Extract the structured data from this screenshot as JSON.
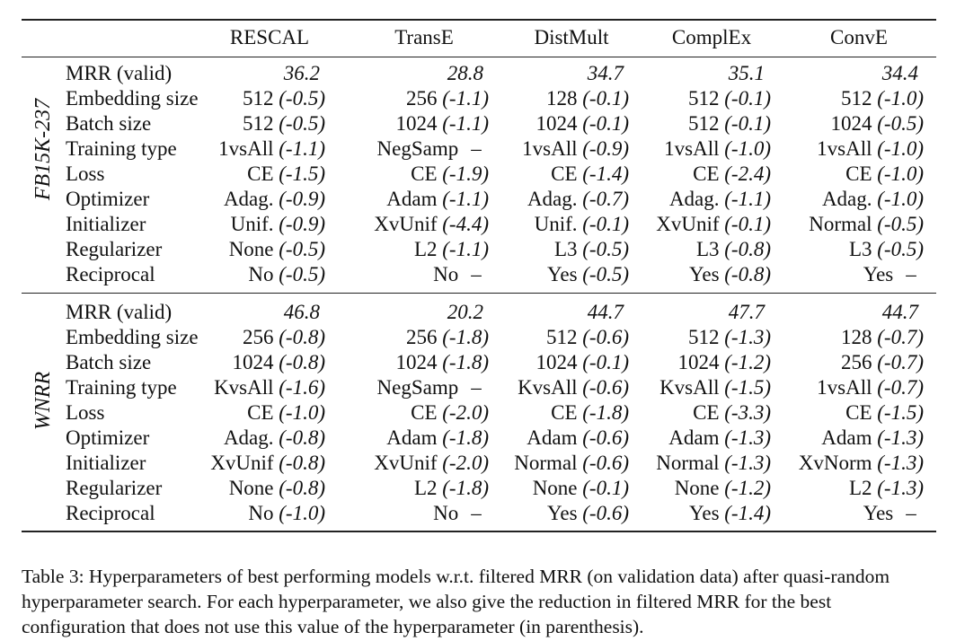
{
  "table": {
    "columns": [
      "RESCAL",
      "TransE",
      "DistMult",
      "ComplEx",
      "ConvE"
    ],
    "sections": [
      {
        "dataset": "FB15K-237",
        "mrr_label": "MRR (valid)",
        "mrr": [
          "36.2",
          "28.8",
          "34.7",
          "35.1",
          "34.4"
        ],
        "rows": [
          {
            "label": "Embedding size",
            "cells": [
              [
                "512",
                "(-0.5)"
              ],
              [
                "256",
                "(-1.1)"
              ],
              [
                "128",
                "(-0.1)"
              ],
              [
                "512",
                "(-0.1)"
              ],
              [
                "512",
                "(-1.0)"
              ]
            ]
          },
          {
            "label": "Batch size",
            "cells": [
              [
                "512",
                "(-0.5)"
              ],
              [
                "1024",
                "(-1.1)"
              ],
              [
                "1024",
                "(-0.1)"
              ],
              [
                "512",
                "(-0.1)"
              ],
              [
                "1024",
                "(-0.5)"
              ]
            ]
          },
          {
            "label": "Training type",
            "cells": [
              [
                "1vsAll",
                "(-1.1)"
              ],
              [
                "NegSamp",
                "–"
              ],
              [
                "1vsAll",
                "(-0.9)"
              ],
              [
                "1vsAll",
                "(-1.0)"
              ],
              [
                "1vsAll",
                "(-1.0)"
              ]
            ]
          },
          {
            "label": "Loss",
            "cells": [
              [
                "CE",
                "(-1.5)"
              ],
              [
                "CE",
                "(-1.9)"
              ],
              [
                "CE",
                "(-1.4)"
              ],
              [
                "CE",
                "(-2.4)"
              ],
              [
                "CE",
                "(-1.0)"
              ]
            ]
          },
          {
            "label": "Optimizer",
            "cells": [
              [
                "Adag.",
                "(-0.9)"
              ],
              [
                "Adam",
                "(-1.1)"
              ],
              [
                "Adag.",
                "(-0.7)"
              ],
              [
                "Adag.",
                "(-1.1)"
              ],
              [
                "Adag.",
                "(-1.0)"
              ]
            ]
          },
          {
            "label": "Initializer",
            "cells": [
              [
                "Unif.",
                "(-0.9)"
              ],
              [
                "XvUnif",
                "(-4.4)"
              ],
              [
                "Unif.",
                "(-0.1)"
              ],
              [
                "XvUnif",
                "(-0.1)"
              ],
              [
                "Normal",
                "(-0.5)"
              ]
            ]
          },
          {
            "label": "Regularizer",
            "cells": [
              [
                "None",
                "(-0.5)"
              ],
              [
                "L2",
                "(-1.1)"
              ],
              [
                "L3",
                "(-0.5)"
              ],
              [
                "L3",
                "(-0.8)"
              ],
              [
                "L3",
                "(-0.5)"
              ]
            ]
          },
          {
            "label": "Reciprocal",
            "cells": [
              [
                "No",
                "(-0.5)"
              ],
              [
                "No",
                "–"
              ],
              [
                "Yes",
                "(-0.5)"
              ],
              [
                "Yes",
                "(-0.8)"
              ],
              [
                "Yes",
                "–"
              ]
            ]
          }
        ]
      },
      {
        "dataset": "WNRR",
        "mrr_label": "MRR (valid)",
        "mrr": [
          "46.8",
          "20.2",
          "44.7",
          "47.7",
          "44.7"
        ],
        "rows": [
          {
            "label": "Embedding size",
            "cells": [
              [
                "256",
                "(-0.8)"
              ],
              [
                "256",
                "(-1.8)"
              ],
              [
                "512",
                "(-0.6)"
              ],
              [
                "512",
                "(-1.3)"
              ],
              [
                "128",
                "(-0.7)"
              ]
            ]
          },
          {
            "label": "Batch size",
            "cells": [
              [
                "1024",
                "(-0.8)"
              ],
              [
                "1024",
                "(-1.8)"
              ],
              [
                "1024",
                "(-0.1)"
              ],
              [
                "1024",
                "(-1.2)"
              ],
              [
                "256",
                "(-0.7)"
              ]
            ]
          },
          {
            "label": "Training type",
            "cells": [
              [
                "KvsAll",
                "(-1.6)"
              ],
              [
                "NegSamp",
                "–"
              ],
              [
                "KvsAll",
                "(-0.6)"
              ],
              [
                "KvsAll",
                "(-1.5)"
              ],
              [
                "1vsAll",
                "(-0.7)"
              ]
            ]
          },
          {
            "label": "Loss",
            "cells": [
              [
                "CE",
                "(-1.0)"
              ],
              [
                "CE",
                "(-2.0)"
              ],
              [
                "CE",
                "(-1.8)"
              ],
              [
                "CE",
                "(-3.3)"
              ],
              [
                "CE",
                "(-1.5)"
              ]
            ]
          },
          {
            "label": "Optimizer",
            "cells": [
              [
                "Adag.",
                "(-0.8)"
              ],
              [
                "Adam",
                "(-1.8)"
              ],
              [
                "Adam",
                "(-0.6)"
              ],
              [
                "Adam",
                "(-1.3)"
              ],
              [
                "Adam",
                "(-1.3)"
              ]
            ]
          },
          {
            "label": "Initializer",
            "cells": [
              [
                "XvUnif",
                "(-0.8)"
              ],
              [
                "XvUnif",
                "(-2.0)"
              ],
              [
                "Normal",
                "(-0.6)"
              ],
              [
                "Normal",
                "(-1.3)"
              ],
              [
                "XvNorm",
                "(-1.3)"
              ]
            ]
          },
          {
            "label": "Regularizer",
            "cells": [
              [
                "None",
                "(-0.8)"
              ],
              [
                "L2",
                "(-1.8)"
              ],
              [
                "None",
                "(-0.1)"
              ],
              [
                "None",
                "(-1.2)"
              ],
              [
                "L2",
                "(-1.3)"
              ]
            ]
          },
          {
            "label": "Reciprocal",
            "cells": [
              [
                "No",
                "(-1.0)"
              ],
              [
                "No",
                "–"
              ],
              [
                "Yes",
                "(-0.6)"
              ],
              [
                "Yes",
                "(-1.4)"
              ],
              [
                "Yes",
                "–"
              ]
            ]
          }
        ]
      }
    ]
  },
  "caption": "Table 3: Hyperparameters of best performing models w.r.t. filtered MRR (on validation data) after quasi-random hyperparameter search. For each hyperparameter, we also give the reduction in filtered MRR for the best configuration that does not use this value of the hyperparameter (in parenthesis)."
}
